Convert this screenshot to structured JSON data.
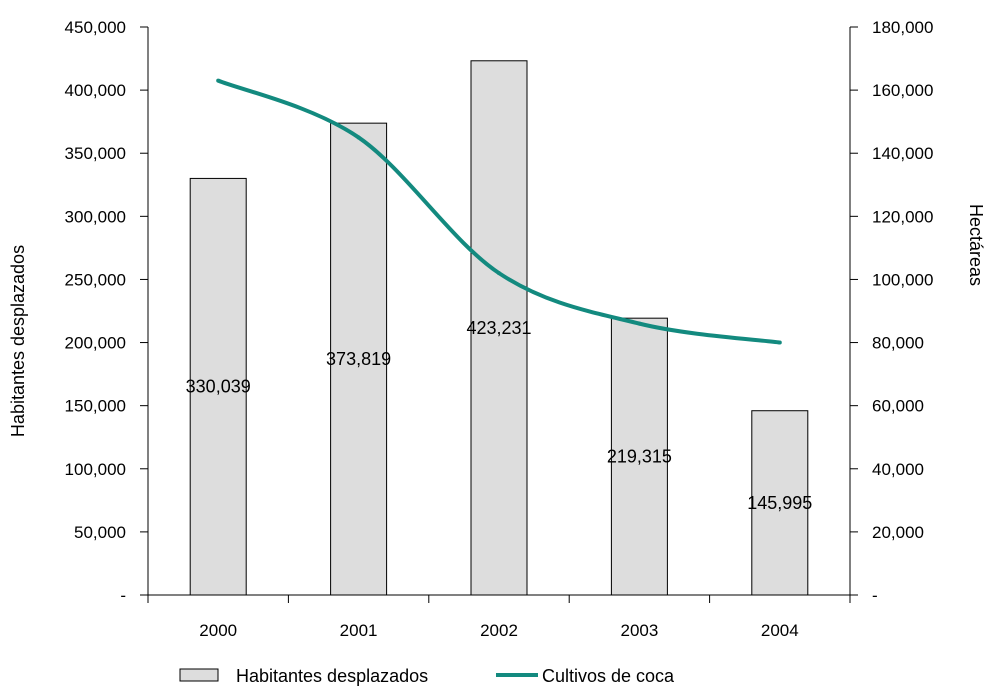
{
  "chart_data": {
    "type": "bar",
    "categories": [
      "2000",
      "2001",
      "2002",
      "2003",
      "2004"
    ],
    "series": [
      {
        "name": "Habitantes desplazados",
        "type": "bar",
        "axis": "left",
        "values": [
          330039,
          373819,
          423231,
          219315,
          145995
        ],
        "labels": [
          "330,039",
          "373,819",
          "423,231",
          "219,315",
          "145,995"
        ],
        "color": "#dddddd"
      },
      {
        "name": "Cultivos de coca",
        "type": "line",
        "axis": "right",
        "values": [
          163000,
          145000,
          102000,
          86000,
          80000
        ],
        "color": "#138a7f"
      }
    ],
    "ylabel": "Habitantes desplazados",
    "y2label": "Hectáreas",
    "ylim": [
      0,
      450000
    ],
    "y2lim": [
      0,
      180000
    ],
    "yticks": [
      "-",
      "50,000",
      "100,000",
      "150,000",
      "200,000",
      "250,000",
      "300,000",
      "350,000",
      "400,000",
      "450,000"
    ],
    "y2ticks": [
      "-",
      "20,000",
      "40,000",
      "60,000",
      "80,000",
      "100,000",
      "120,000",
      "140,000",
      "160,000",
      "180,000"
    ],
    "grid": false,
    "legend": "bottom"
  }
}
